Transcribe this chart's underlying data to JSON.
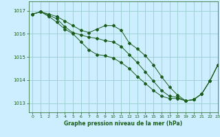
{
  "title": "Graphe pression niveau de la mer (hPa)",
  "bg_color": "#cceeff",
  "grid_color": "#99cccc",
  "line_color": "#1a5c1a",
  "marker_color": "#1a5c1a",
  "xlim": [
    -0.5,
    23
  ],
  "ylim": [
    1012.6,
    1017.4
  ],
  "yticks": [
    1013,
    1014,
    1015,
    1016,
    1017
  ],
  "xticks": [
    0,
    1,
    2,
    3,
    4,
    5,
    6,
    7,
    8,
    9,
    10,
    11,
    12,
    13,
    14,
    15,
    16,
    17,
    18,
    19,
    20,
    21,
    22,
    23
  ],
  "series_top": [
    1016.85,
    1016.95,
    1016.85,
    1016.75,
    1016.55,
    1016.35,
    1016.15,
    1016.05,
    1016.2,
    1016.35,
    1016.35,
    1016.15,
    1015.6,
    1015.35,
    1015.05,
    1014.65,
    1014.15,
    1013.7,
    1013.35,
    1013.1,
    1013.15,
    1013.4,
    1013.95,
    1014.65
  ],
  "series_mid": [
    1016.85,
    1016.95,
    1016.8,
    1016.65,
    1016.3,
    1016.05,
    1015.95,
    1015.85,
    1015.8,
    1015.7,
    1015.65,
    1015.45,
    1015.1,
    1014.75,
    1014.35,
    1013.95,
    1013.55,
    1013.3,
    1013.25,
    1013.1,
    1013.15,
    1013.4,
    1013.95,
    1014.65
  ],
  "series_bot": [
    1016.85,
    1016.95,
    1016.75,
    1016.5,
    1016.2,
    1016.0,
    1015.65,
    1015.3,
    1015.1,
    1015.05,
    1014.95,
    1014.75,
    1014.5,
    1014.15,
    1013.85,
    1013.55,
    1013.3,
    1013.2,
    1013.2,
    1013.1,
    1013.15,
    1013.4,
    1013.95,
    1014.65
  ]
}
